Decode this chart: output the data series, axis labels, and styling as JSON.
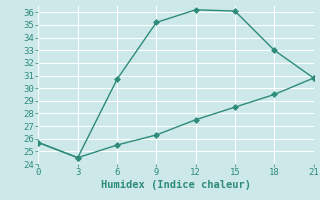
{
  "line1_x": [
    0,
    3,
    6,
    9,
    12,
    15,
    18,
    21
  ],
  "line1_y": [
    25.7,
    24.5,
    30.7,
    35.2,
    36.2,
    36.1,
    33.0,
    30.8
  ],
  "line2_x": [
    0,
    3,
    6,
    9,
    12,
    15,
    18,
    21
  ],
  "line2_y": [
    25.7,
    24.5,
    25.5,
    26.3,
    27.5,
    28.5,
    29.5,
    30.8
  ],
  "line_color": "#2e8b7a",
  "marker": "D",
  "marker_size": 3,
  "xlabel": "Humidex (Indice chaleur)",
  "xlim": [
    0,
    21
  ],
  "ylim": [
    24,
    36.5
  ],
  "xticks": [
    0,
    3,
    6,
    9,
    12,
    15,
    18,
    21
  ],
  "yticks": [
    24,
    25,
    26,
    27,
    28,
    29,
    30,
    31,
    32,
    33,
    34,
    35,
    36
  ],
  "bg_color": "#cce8e8",
  "grid_color": "#ffffff",
  "font_color": "#2e8b7a",
  "tick_fontsize": 6.5,
  "xlabel_fontsize": 7.5
}
